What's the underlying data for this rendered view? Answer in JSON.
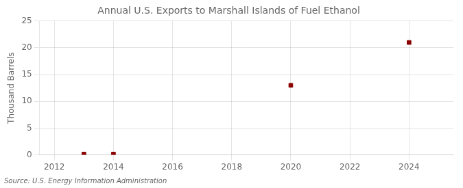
{
  "chart_data": {
    "type": "scatter",
    "title": "Annual U.S. Exports to Marshall Islands of Fuel Ethanol",
    "y_label": "Thousand Barrels",
    "source": "Source: U.S. Energy Information Administration",
    "x": [
      2013,
      2014,
      2020,
      2024
    ],
    "values": [
      0.15,
      0.15,
      13,
      21
    ],
    "color": "#8b0000",
    "marker": "square",
    "xlim": [
      2011.5,
      2025.5
    ],
    "xticks": [
      2012,
      2014,
      2016,
      2018,
      2020,
      2022,
      2024
    ],
    "ylim": [
      0,
      25
    ],
    "yticks": [
      0,
      5,
      10,
      15,
      20,
      25
    ],
    "grid": true
  }
}
